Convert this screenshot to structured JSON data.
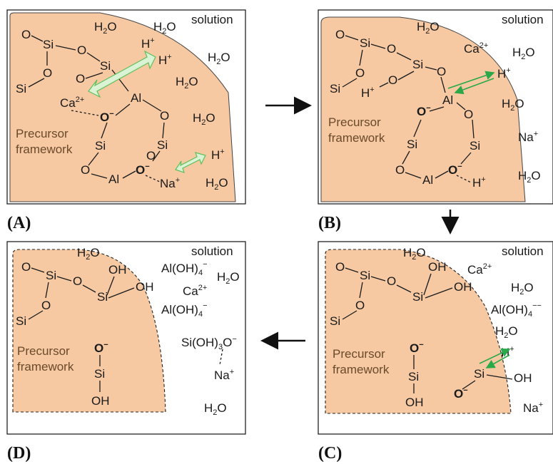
{
  "panels": {
    "A": {
      "label": "(A)",
      "solution": "solution",
      "framework": [
        "Precursor",
        "framework"
      ],
      "water": "H",
      "water_sub": "2",
      "water_o": "O",
      "si": "Si",
      "o": "O",
      "al": "Al",
      "h": "H",
      "plus": "+",
      "ca": "Ca",
      "ca_charge": "2+",
      "na": "Na",
      "minus": "−"
    },
    "B": {
      "label": "(B)",
      "solution": "solution",
      "framework": [
        "Precursor",
        "framework"
      ]
    },
    "C": {
      "label": "(C)",
      "solution": "solution",
      "framework": [
        "Precursor",
        "framework"
      ],
      "aloh": "Al(OH)",
      "aloh_sub": "4",
      "oh": "OH"
    },
    "D": {
      "label": "(D)",
      "solution": "solution",
      "framework": [
        "Precursor",
        "framework"
      ],
      "sioh": "Si(OH)",
      "sioh_sub": "3",
      "sioh_end": "O"
    }
  },
  "colors": {
    "framework_fill": "#f6c9a3",
    "frame_text": "#6a4a2a",
    "arrow_light": "#d9f3d4",
    "arrow_light_stroke": "#5fbf5a",
    "arrow_dark": "#2aa84a"
  }
}
